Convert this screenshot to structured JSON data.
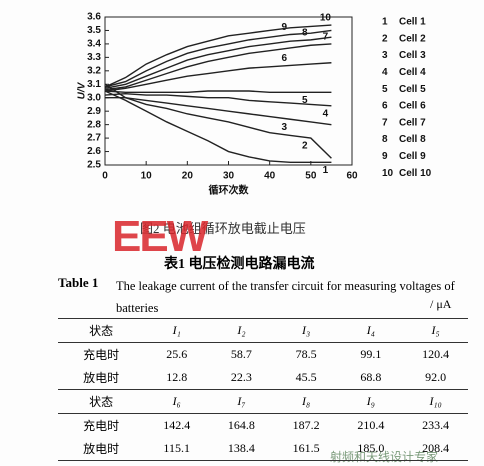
{
  "chart_data": {
    "type": "line",
    "x_label": "循环次数",
    "y_label": "U/V",
    "x": [
      0,
      5,
      10,
      15,
      20,
      25,
      30,
      35,
      40,
      45,
      50,
      55
    ],
    "xlim": [
      0,
      60
    ],
    "xticks": [
      0,
      10,
      20,
      30,
      40,
      50,
      60
    ],
    "ylim": [
      2.5,
      3.6
    ],
    "yticks": [
      2.5,
      2.6,
      2.7,
      2.8,
      2.9,
      {
        "value": 3.0,
        "label": "3.0"
      },
      3.1,
      3.2,
      3.3,
      3.4,
      3.5,
      3.6
    ],
    "series": [
      {
        "label": "1",
        "name": "Cell 1",
        "color": "#222",
        "values": [
          3.05,
          2.98,
          2.9,
          2.82,
          2.75,
          2.68,
          2.6,
          2.56,
          2.53,
          2.52,
          2.52,
          2.52
        ]
      },
      {
        "label": "2",
        "name": "Cell 2",
        "color": "#222",
        "values": [
          3.1,
          3.0,
          2.95,
          2.92,
          2.88,
          2.85,
          2.82,
          2.78,
          2.74,
          2.72,
          2.7,
          2.55
        ]
      },
      {
        "label": "3",
        "name": "Cell 3",
        "color": "#222",
        "values": [
          3.0,
          3.0,
          2.98,
          2.96,
          2.94,
          2.92,
          2.9,
          2.88,
          2.86,
          2.84,
          2.82,
          2.8
        ]
      },
      {
        "label": "4",
        "name": "Cell 4",
        "color": "#222",
        "values": [
          3.02,
          3.03,
          3.02,
          3.02,
          3.01,
          3.0,
          3.0,
          2.98,
          2.97,
          2.96,
          2.95,
          2.94
        ]
      },
      {
        "label": "5",
        "name": "Cell 5",
        "color": "#222",
        "values": [
          3.05,
          3.04,
          3.04,
          3.04,
          3.04,
          3.05,
          3.05,
          3.05,
          3.04,
          3.04,
          3.04,
          3.04
        ]
      },
      {
        "label": "6",
        "name": "Cell 6",
        "color": "#222",
        "values": [
          3.05,
          3.07,
          3.1,
          3.13,
          3.16,
          3.18,
          3.2,
          3.22,
          3.23,
          3.24,
          3.25,
          3.26
        ]
      },
      {
        "label": "7",
        "name": "Cell 7",
        "color": "#222",
        "values": [
          3.06,
          3.08,
          3.13,
          3.18,
          3.23,
          3.27,
          3.3,
          3.33,
          3.35,
          3.37,
          3.39,
          3.4
        ]
      },
      {
        "label": "8",
        "name": "Cell 8",
        "color": "#222",
        "values": [
          3.07,
          3.1,
          3.16,
          3.22,
          3.28,
          3.32,
          3.35,
          3.38,
          3.4,
          3.42,
          3.43,
          3.45
        ]
      },
      {
        "label": "9",
        "name": "Cell 9",
        "color": "#222",
        "values": [
          3.08,
          3.12,
          3.2,
          3.27,
          3.33,
          3.37,
          3.4,
          3.43,
          3.45,
          3.47,
          3.48,
          3.5
        ]
      },
      {
        "label": "10",
        "name": "Cell 10",
        "color": "#222",
        "values": [
          3.08,
          3.15,
          3.25,
          3.32,
          3.38,
          3.42,
          3.46,
          3.48,
          3.5,
          3.52,
          3.53,
          3.54
        ]
      }
    ]
  },
  "figure_caption": "图2   电池组循环放电截止电压",
  "watermark": {
    "logo": "EEW",
    "slogan": "射频和天线设计专家"
  },
  "table_title_cn": "表1   电压检测电路漏电流",
  "table_label": "Table 1",
  "table_caption": "The leakage current of the transfer circuit for measuring voltages of batteries",
  "table_unit": "/ μA",
  "table": {
    "rows": [
      [
        "状态",
        "I₁",
        "I₂",
        "I₃",
        "I₄",
        "I₅"
      ],
      [
        "充电时",
        "25.6",
        "58.7",
        "78.5",
        "99.1",
        "120.4"
      ],
      [
        "放电时",
        "12.8",
        "22.3",
        "45.5",
        "68.8",
        "92.0"
      ],
      [
        "状态",
        "I₆",
        "I₇",
        "I₈",
        "I₉",
        "I₁₀"
      ],
      [
        "充电时",
        "142.4",
        "164.8",
        "187.2",
        "210.4",
        "233.4"
      ],
      [
        "放电时",
        "115.1",
        "138.4",
        "161.5",
        "185.0",
        "208.4"
      ]
    ]
  }
}
